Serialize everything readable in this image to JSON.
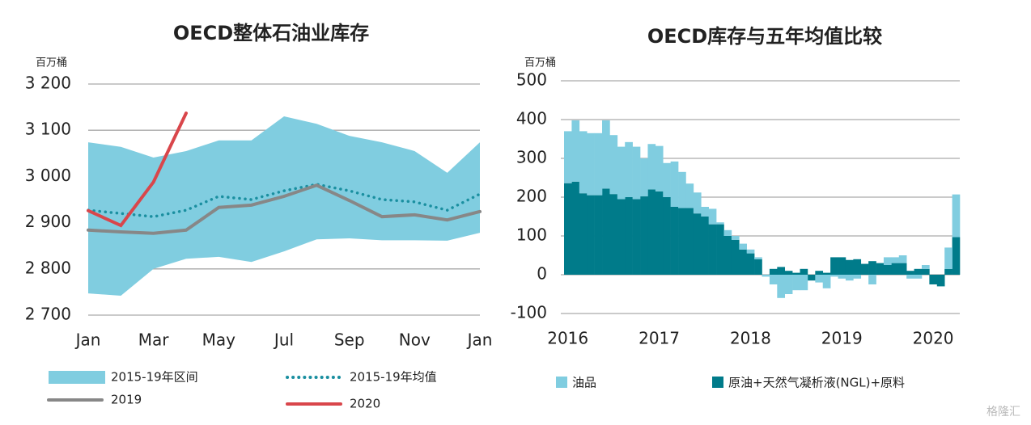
{
  "chart_data": [
    {
      "type": "line",
      "title": "OECD整体石油业库存",
      "y_label": "百万桶",
      "categories": [
        "Jan",
        null,
        "Mar",
        null,
        "May",
        null,
        "Jul",
        null,
        "Sep",
        null,
        "Nov",
        null,
        "Jan"
      ],
      "ylim": [
        2700,
        3200
      ],
      "yticks": [
        {
          "value": 2700,
          "label": "2 700"
        },
        {
          "value": 2800,
          "label": "2 800"
        },
        {
          "value": 2900,
          "label": "2 900"
        },
        {
          "value": 3000,
          "label": "3 000"
        },
        {
          "value": 3100,
          "label": "3 100"
        },
        {
          "value": 3200,
          "label": "3 200"
        }
      ],
      "grid": true,
      "series": [
        {
          "name": "2015-19年区间",
          "color": "#80cde0",
          "style": "range",
          "low": [
            2747,
            2742,
            2800,
            2822,
            2826,
            2815,
            2838,
            2864,
            2866,
            2862,
            2862,
            2861,
            2878
          ],
          "high": [
            3074,
            3064,
            3041,
            3055,
            3078,
            3078,
            3130,
            3114,
            3088,
            3074,
            3055,
            3008,
            3074
          ]
        },
        {
          "name": "2015-19年均值",
          "color": "#1a8fa0",
          "style": "dotted",
          "values": [
            2927,
            2920,
            2913,
            2927,
            2957,
            2950,
            2969,
            2983,
            2969,
            2950,
            2945,
            2927,
            2962
          ]
        },
        {
          "name": "2019",
          "color": "#878787",
          "style": "solid",
          "values": [
            2884,
            2880,
            2877,
            2884,
            2933,
            2938,
            2957,
            2981,
            2948,
            2913,
            2917,
            2906,
            2924
          ]
        },
        {
          "name": "2020",
          "color": "#d9464b",
          "style": "solid",
          "values": [
            2926,
            2894,
            2988,
            3137,
            null,
            null,
            null,
            null,
            null,
            null,
            null,
            null,
            null
          ]
        }
      ]
    },
    {
      "type": "stacked_bar",
      "title": "OECD库存与五年均值比较",
      "y_label": "百万桶",
      "categories": [
        "2016",
        null,
        null,
        null,
        null,
        null,
        null,
        null,
        null,
        null,
        null,
        null,
        "2017",
        null,
        null,
        null,
        null,
        null,
        null,
        null,
        null,
        null,
        null,
        null,
        "2018",
        null,
        null,
        null,
        null,
        null,
        null,
        null,
        null,
        null,
        null,
        null,
        "2019",
        null,
        null,
        null,
        null,
        null,
        null,
        null,
        null,
        null,
        null,
        null,
        "2020",
        null,
        null,
        null
      ],
      "ylim": [
        -100,
        500
      ],
      "yticks": [
        -100,
        0,
        100,
        200,
        300,
        400,
        500
      ],
      "grid": true,
      "series": [
        {
          "name": "原油+天然气凝析液(NGL)+原料",
          "color": "#007b8a",
          "values": [
            236,
            240,
            210,
            205,
            205,
            222,
            208,
            195,
            200,
            195,
            202,
            220,
            215,
            200,
            175,
            172,
            172,
            158,
            150,
            130,
            130,
            100,
            90,
            65,
            55,
            40,
            0,
            15,
            20,
            10,
            5,
            15,
            -15,
            10,
            5,
            45,
            45,
            38,
            40,
            28,
            35,
            30,
            25,
            30,
            30,
            10,
            15,
            15,
            -25,
            -30,
            15,
            97
          ]
        },
        {
          "name": "油品",
          "color": "#80cde0",
          "values": [
            134,
            158,
            160,
            160,
            160,
            176,
            152,
            135,
            142,
            135,
            98,
            117,
            117,
            88,
            117,
            93,
            63,
            54,
            25,
            40,
            5,
            15,
            10,
            15,
            10,
            5,
            -5,
            -25,
            -60,
            -50,
            -40,
            -40,
            0,
            -20,
            -35,
            -5,
            -10,
            -15,
            -10,
            0,
            -25,
            0,
            20,
            15,
            20,
            -10,
            -10,
            10,
            0,
            0,
            55,
            110
          ]
        }
      ]
    }
  ],
  "watermark": "格隆汇"
}
